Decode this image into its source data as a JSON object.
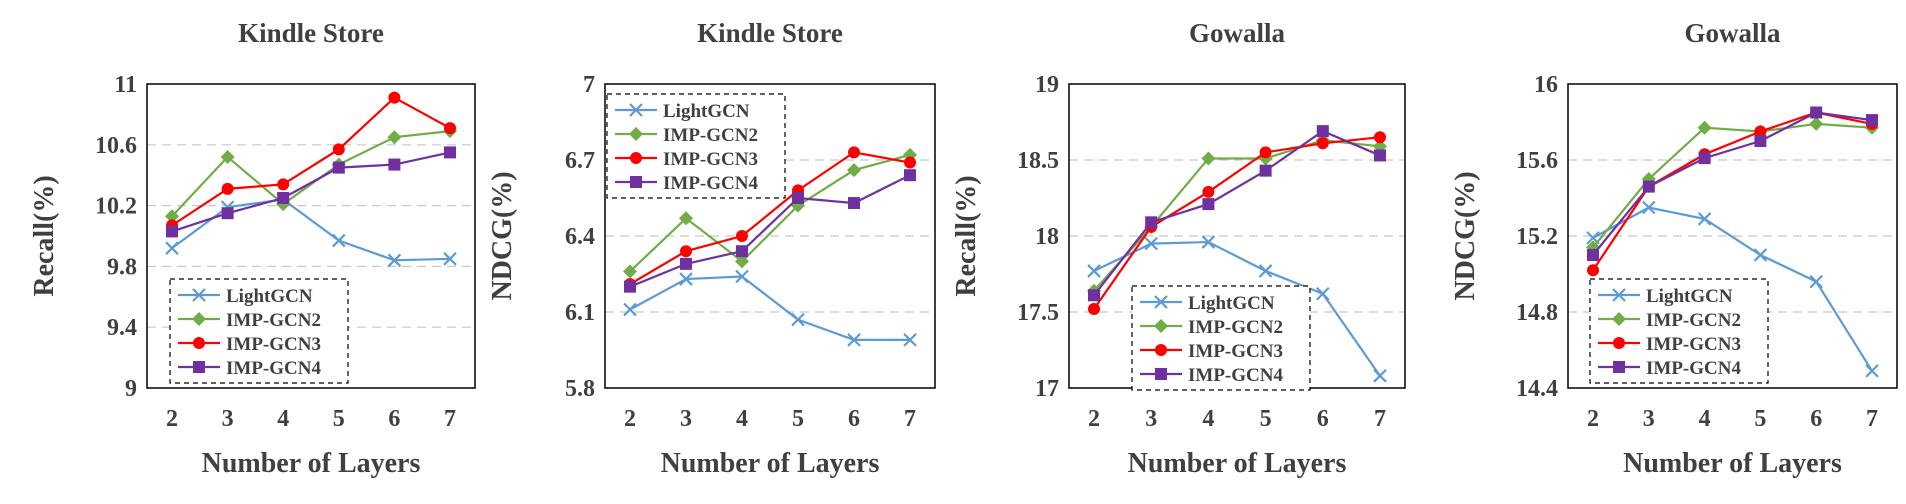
{
  "colors": {
    "LightGCN": "#5b9bd5",
    "IMP-GCN2": "#70ad47",
    "IMP-GCN3": "#ff0000",
    "IMP-GCN4": "#7030a0"
  },
  "chart_data": [
    {
      "type": "line",
      "title": "Kindle Store",
      "xlabel": "Number of Layers",
      "ylabel": "Recall(%)",
      "x": [
        2,
        3,
        4,
        5,
        6,
        7
      ],
      "ylim": [
        9,
        11
      ],
      "yticks": [
        "9",
        "9.4",
        "9.8",
        "10.2",
        "10.6",
        "11"
      ],
      "grid": "horizontal dashed",
      "legend": "bottom-left",
      "series": [
        {
          "name": "LightGCN",
          "marker": "x",
          "values": [
            9.92,
            10.19,
            10.24,
            9.97,
            9.84,
            9.85
          ]
        },
        {
          "name": "IMP-GCN2",
          "marker": "diamond",
          "values": [
            10.13,
            10.52,
            10.21,
            10.47,
            10.65,
            10.69
          ]
        },
        {
          "name": "IMP-GCN3",
          "marker": "circle",
          "values": [
            10.07,
            10.31,
            10.34,
            10.57,
            10.91,
            10.71
          ]
        },
        {
          "name": "IMP-GCN4",
          "marker": "square",
          "values": [
            10.03,
            10.15,
            10.25,
            10.45,
            10.47,
            10.55
          ]
        }
      ]
    },
    {
      "type": "line",
      "title": "Kindle Store",
      "xlabel": "Number  of Layers",
      "ylabel": "NDCG(%)",
      "x": [
        2,
        3,
        4,
        5,
        6,
        7
      ],
      "ylim": [
        5.8,
        7
      ],
      "yticks": [
        "5.8",
        "6.1",
        "6.4",
        "6.7",
        "7"
      ],
      "grid": "horizontal dashed",
      "legend": "top-left",
      "series": [
        {
          "name": "LightGCN",
          "marker": "x",
          "values": [
            6.11,
            6.23,
            6.24,
            6.07,
            5.99,
            5.99
          ]
        },
        {
          "name": "IMP-GCN2",
          "marker": "diamond",
          "values": [
            6.26,
            6.47,
            6.3,
            6.52,
            6.66,
            6.72
          ]
        },
        {
          "name": "IMP-GCN3",
          "marker": "circle",
          "values": [
            6.21,
            6.34,
            6.4,
            6.58,
            6.73,
            6.69
          ]
        },
        {
          "name": "IMP-GCN4",
          "marker": "square",
          "values": [
            6.2,
            6.29,
            6.34,
            6.55,
            6.53,
            6.64
          ]
        }
      ]
    },
    {
      "type": "line",
      "title": "Gowalla",
      "xlabel": "Number of Layers",
      "ylabel": "Recall(%)",
      "x": [
        2,
        3,
        4,
        5,
        6,
        7
      ],
      "ylim": [
        17,
        19
      ],
      "yticks": [
        "17",
        "17.5",
        "18",
        "18.5",
        "19"
      ],
      "grid": "horizontal dashed",
      "legend": "bottom-left",
      "series": [
        {
          "name": "LightGCN",
          "marker": "x",
          "values": [
            17.77,
            17.95,
            17.96,
            17.77,
            17.62,
            17.08
          ]
        },
        {
          "name": "IMP-GCN2",
          "marker": "diamond",
          "values": [
            17.64,
            18.06,
            18.51,
            18.51,
            18.63,
            18.59
          ]
        },
        {
          "name": "IMP-GCN3",
          "marker": "circle",
          "values": [
            17.52,
            18.06,
            18.29,
            18.55,
            18.61,
            18.65
          ]
        },
        {
          "name": "IMP-GCN4",
          "marker": "square",
          "values": [
            17.61,
            18.09,
            18.21,
            18.43,
            18.69,
            18.53
          ]
        }
      ]
    },
    {
      "type": "line",
      "title": "Gowalla",
      "xlabel": "Number of Layers",
      "ylabel": "NDCG(%)",
      "x": [
        2,
        3,
        4,
        5,
        6,
        7
      ],
      "ylim": [
        14.4,
        16
      ],
      "yticks": [
        "14.4",
        "14.8",
        "15.2",
        "15.6",
        "16"
      ],
      "grid": "horizontal dashed",
      "legend": "bottom-left",
      "series": [
        {
          "name": "LightGCN",
          "marker": "x",
          "values": [
            15.19,
            15.35,
            15.29,
            15.1,
            14.96,
            14.49
          ]
        },
        {
          "name": "IMP-GCN2",
          "marker": "diamond",
          "values": [
            15.14,
            15.5,
            15.77,
            15.75,
            15.79,
            15.77
          ]
        },
        {
          "name": "IMP-GCN3",
          "marker": "circle",
          "values": [
            15.02,
            15.46,
            15.63,
            15.75,
            15.85,
            15.79
          ]
        },
        {
          "name": "IMP-GCN4",
          "marker": "square",
          "values": [
            15.1,
            15.46,
            15.61,
            15.7,
            15.85,
            15.81
          ]
        }
      ]
    }
  ]
}
